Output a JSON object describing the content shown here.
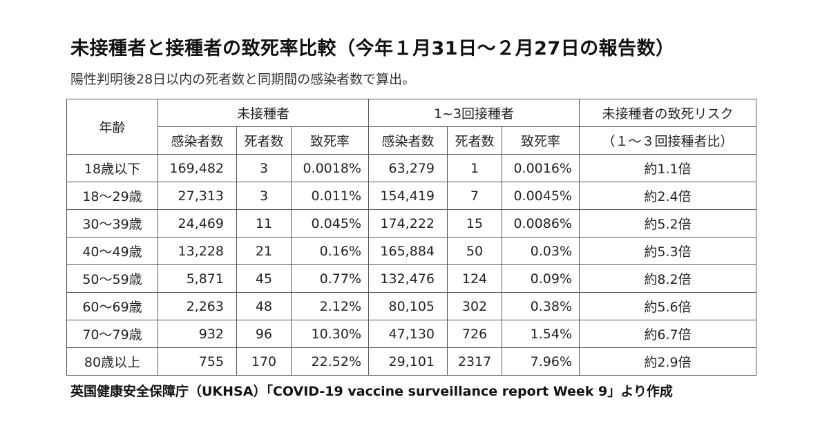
{
  "title": "未接種者と接種者の致死率比較（今年１月31日～２月27日の報告数）",
  "subtitle": "陽性判明後28日以内の死者数と同期間の感染者数で算出。",
  "table": {
    "age_header": "年齢",
    "group_unvaccinated": "未接種者",
    "group_vaccinated": "1~3回接種者",
    "risk_header_line1": "未接種者の致死リスク",
    "risk_header_line2": "（１～３回接種者比）",
    "col_cases": "感染者数",
    "col_deaths": "死者数",
    "col_rate": "致死率",
    "rows": [
      {
        "age": "18歳以下",
        "u_cases": "169,482",
        "u_deaths": "3",
        "u_rate": "0.0018%",
        "v_cases": "63,279",
        "v_deaths": "1",
        "v_rate": "0.0016%",
        "risk": "約1.1倍"
      },
      {
        "age": "18～29歳",
        "u_cases": "27,313",
        "u_deaths": "3",
        "u_rate": "0.011%",
        "v_cases": "154,419",
        "v_deaths": "7",
        "v_rate": "0.0045%",
        "risk": "約2.4倍"
      },
      {
        "age": "30～39歳",
        "u_cases": "24,469",
        "u_deaths": "11",
        "u_rate": "0.045%",
        "v_cases": "174,222",
        "v_deaths": "15",
        "v_rate": "0.0086%",
        "risk": "約5.2倍"
      },
      {
        "age": "40～49歳",
        "u_cases": "13,228",
        "u_deaths": "21",
        "u_rate": "0.16%",
        "v_cases": "165,884",
        "v_deaths": "50",
        "v_rate": "0.03%",
        "risk": "約5.3倍"
      },
      {
        "age": "50～59歳",
        "u_cases": "5,871",
        "u_deaths": "45",
        "u_rate": "0.77%",
        "v_cases": "132,476",
        "v_deaths": "124",
        "v_rate": "0.09%",
        "risk": "約8.2倍"
      },
      {
        "age": "60～69歳",
        "u_cases": "2,263",
        "u_deaths": "48",
        "u_rate": "2.12%",
        "v_cases": "80,105",
        "v_deaths": "302",
        "v_rate": "0.38%",
        "risk": "約5.6倍"
      },
      {
        "age": "70～79歳",
        "u_cases": "932",
        "u_deaths": "96",
        "u_rate": "10.30%",
        "v_cases": "47,130",
        "v_deaths": "726",
        "v_rate": "1.54%",
        "risk": "約6.7倍"
      },
      {
        "age": "80歳以上",
        "u_cases": "755",
        "u_deaths": "170",
        "u_rate": "22.52%",
        "v_cases": "29,101",
        "v_deaths": "2317",
        "v_rate": "7.96%",
        "risk": "約2.9倍"
      }
    ]
  },
  "footer": "英国健康安全保障庁（UKHSA）「COVID-19 vaccine surveillance report Week 9」より作成"
}
